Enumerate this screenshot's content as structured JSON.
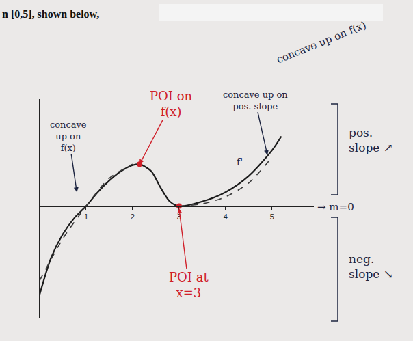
{
  "chart_data": {
    "type": "line",
    "title": "n [0,5], shown below,",
    "xlim": [
      0,
      5.9
    ],
    "ylim": [
      -2.4,
      2.3
    ],
    "xticks": [
      1,
      2,
      3,
      4,
      5
    ],
    "yticks": [],
    "tick_labels": "x",
    "grid": false,
    "series": [
      {
        "type": "line",
        "color": "#1c1c1c",
        "line_style": "solid",
        "x": [
          0,
          0.25,
          0.5,
          0.75,
          1,
          1.25,
          1.5,
          1.75,
          2,
          2.15,
          2.4,
          2.6,
          2.8,
          3,
          3.5,
          4,
          4.5,
          5,
          5.2
        ],
        "values": [
          -1.9,
          -1.1,
          -0.6,
          -0.25,
          0,
          0.3,
          0.55,
          0.75,
          0.88,
          0.9,
          0.75,
          0.4,
          0.1,
          0,
          0.1,
          0.3,
          0.65,
          1.2,
          1.5
        ]
      },
      {
        "type": "line",
        "color": "#3a3a3a",
        "line_style": "dash",
        "x": [
          0,
          0.5,
          1,
          1.5,
          2,
          2.5,
          3,
          3.5,
          4,
          4.5,
          5
        ],
        "values": [
          -1.6,
          -0.7,
          0,
          0.6,
          0.9,
          null,
          0,
          0.05,
          0.2,
          0.5,
          1.05
        ]
      },
      {
        "type": "scatter",
        "color": "#d0202a",
        "marker": "circle",
        "x": [
          2.15,
          3
        ],
        "values": [
          0.9,
          0
        ]
      }
    ],
    "annotations": [
      {
        "text": "concave up on f(x)",
        "color": "#1c2440",
        "x": 0.8,
        "y": 0.3
      },
      {
        "text": "POI on f(x)",
        "color": "#d0202a",
        "x": 2.15,
        "y": 0.9
      },
      {
        "text": "POI at x=3",
        "color": "#d0202a",
        "x": 3,
        "y": -0.05
      },
      {
        "text": "concave up on pos. slope",
        "color": "#1c2440",
        "x": 4.9,
        "y": 1.1
      },
      {
        "text": "f'",
        "color": "#1c2440",
        "x": 4.3,
        "y": 0.95
      }
    ],
    "notes": [
      {
        "text": "concave up on f(x)",
        "color": "#1c2440"
      },
      {
        "text": "pos. slope ↗",
        "color": "#1c2440"
      },
      {
        "text": "neg. slope ↘",
        "color": "#1c2440"
      },
      {
        "text": "→ m=0",
        "color": "#1c2440"
      }
    ]
  }
}
